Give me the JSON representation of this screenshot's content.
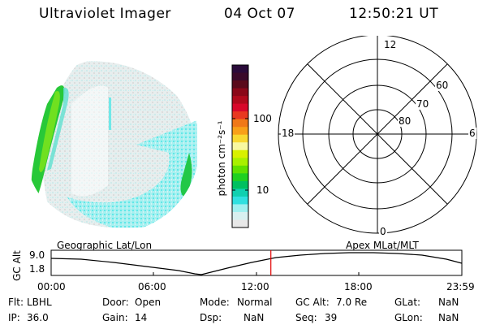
{
  "header": {
    "instrument": "Ultraviolet Imager",
    "date": "04 Oct 07",
    "time": "12:50:21 UT"
  },
  "colorbar": {
    "label": "photon cm⁻²s⁻¹",
    "ticks": [
      "100",
      "10"
    ],
    "scale": "log",
    "colors": [
      "#2a0b3a",
      "#3a0a2a",
      "#5a0a1a",
      "#8a0818",
      "#b00a1c",
      "#d8082a",
      "#e83820",
      "#f07818",
      "#f8a018",
      "#f8d830",
      "#f8f8a0",
      "#d8f000",
      "#a8f000",
      "#60e000",
      "#20d020",
      "#00c060",
      "#10d0b0",
      "#30e0e0",
      "#a0f0f0",
      "#d8f0f0",
      "#e8e8e8"
    ]
  },
  "polar_plot": {
    "mlt_labels": [
      "12",
      "18",
      "6",
      "0"
    ],
    "lat_labels": [
      "60",
      "70",
      "80"
    ]
  },
  "timeline": {
    "ylabel": "GC Alt",
    "yticks": [
      "9.0",
      "1.8"
    ],
    "left_title": "Geographic Lat/Lon",
    "right_title": "Apex  MLat/MLT",
    "xticks": [
      "00:00",
      "06:00",
      "12:00",
      "18:00",
      "23:59"
    ],
    "current_time_fraction": 0.535,
    "marker_color": "#e00000"
  },
  "info": {
    "filter_label": "Flt:",
    "filter_value": "LBHL",
    "ip_label": "IP:",
    "ip_value": "36.0",
    "door_label": "Door:",
    "door_value": "Open",
    "gain_label": "Gain:",
    "gain_value": "14",
    "mode_label": "Mode:",
    "mode_value": "Normal",
    "dsp_label": "Dsp:",
    "dsp_value": "NaN",
    "gcalt_label": "GC Alt:",
    "gcalt_value": "7.0 Re",
    "seq_label": "Seq:",
    "seq_value": "39",
    "glat_label": "GLat:",
    "glat_value": "NaN",
    "glon_label": "GLon:",
    "glon_value": "NaN"
  }
}
